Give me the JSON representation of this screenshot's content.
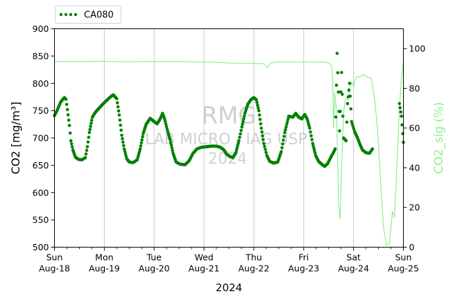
{
  "chart_data": {
    "type": "scatter",
    "xlabel": "2024",
    "ylabel_left": "CO2 [mg/m³]",
    "ylabel_right": "CO2_sig (%)",
    "ylim_left": [
      500,
      900
    ],
    "ylim_right": [
      0,
      110
    ],
    "xlim_days": [
      0,
      7
    ],
    "x_ticks": [
      {
        "day": "Sun",
        "date": "Aug-18"
      },
      {
        "day": "Mon",
        "date": "Aug-19"
      },
      {
        "day": "Tue",
        "date": "Aug-20"
      },
      {
        "day": "Wed",
        "date": "Aug-21"
      },
      {
        "day": "Thu",
        "date": "Aug-22"
      },
      {
        "day": "Fri",
        "date": "Aug-23"
      },
      {
        "day": "Sat",
        "date": "Aug-24"
      },
      {
        "day": "Sun",
        "date": "Aug-25"
      }
    ],
    "y_ticks_left": [
      500,
      550,
      600,
      650,
      700,
      750,
      800,
      850,
      900
    ],
    "y_ticks_right": [
      0,
      20,
      40,
      60,
      80,
      100
    ],
    "grid": "vertical at major x ticks",
    "legend": {
      "placement": "top-left outside",
      "label": "CA080"
    },
    "watermark": [
      "RMG",
      "LAB MICRO - IAG USP",
      "2024"
    ],
    "colors": {
      "co2": "#008000",
      "signal": "#90ee90",
      "grid": "#c8c8c8",
      "watermark": "#c8c8c8"
    },
    "series": [
      {
        "name": "CA080",
        "axis": "left",
        "style": "dots",
        "points": [
          [
            0.0,
            741
          ],
          [
            0.04,
            748
          ],
          [
            0.08,
            756
          ],
          [
            0.12,
            765
          ],
          [
            0.16,
            770
          ],
          [
            0.2,
            774
          ],
          [
            0.23,
            771
          ],
          [
            0.26,
            752
          ],
          [
            0.3,
            723
          ],
          [
            0.33,
            695
          ],
          [
            0.37,
            678
          ],
          [
            0.42,
            665
          ],
          [
            0.48,
            661
          ],
          [
            0.55,
            660
          ],
          [
            0.62,
            664
          ],
          [
            0.66,
            684
          ],
          [
            0.7,
            710
          ],
          [
            0.76,
            738
          ],
          [
            0.82,
            747
          ],
          [
            0.9,
            755
          ],
          [
            0.98,
            763
          ],
          [
            1.05,
            769
          ],
          [
            1.12,
            775
          ],
          [
            1.18,
            779
          ],
          [
            1.25,
            772
          ],
          [
            1.3,
            742
          ],
          [
            1.35,
            705
          ],
          [
            1.4,
            680
          ],
          [
            1.45,
            662
          ],
          [
            1.5,
            656
          ],
          [
            1.58,
            655
          ],
          [
            1.66,
            660
          ],
          [
            1.72,
            680
          ],
          [
            1.78,
            708
          ],
          [
            1.84,
            725
          ],
          [
            1.92,
            736
          ],
          [
            2.0,
            730
          ],
          [
            2.06,
            726
          ],
          [
            2.12,
            735
          ],
          [
            2.17,
            745
          ],
          [
            2.21,
            735
          ],
          [
            2.26,
            716
          ],
          [
            2.32,
            697
          ],
          [
            2.38,
            672
          ],
          [
            2.44,
            656
          ],
          [
            2.52,
            652
          ],
          [
            2.62,
            651
          ],
          [
            2.7,
            658
          ],
          [
            2.78,
            672
          ],
          [
            2.86,
            680
          ],
          [
            2.95,
            683
          ],
          [
            3.05,
            684
          ],
          [
            3.15,
            685
          ],
          [
            3.25,
            685
          ],
          [
            3.33,
            683
          ],
          [
            3.4,
            678
          ],
          [
            3.46,
            670
          ],
          [
            3.52,
            666
          ],
          [
            3.58,
            664
          ],
          [
            3.64,
            673
          ],
          [
            3.7,
            695
          ],
          [
            3.76,
            720
          ],
          [
            3.82,
            745
          ],
          [
            3.88,
            762
          ],
          [
            3.94,
            770
          ],
          [
            4.0,
            774
          ],
          [
            4.05,
            770
          ],
          [
            4.1,
            750
          ],
          [
            4.15,
            718
          ],
          [
            4.2,
            690
          ],
          [
            4.26,
            668
          ],
          [
            4.32,
            657
          ],
          [
            4.4,
            654
          ],
          [
            4.48,
            656
          ],
          [
            4.55,
            675
          ],
          [
            4.62,
            710
          ],
          [
            4.7,
            740
          ],
          [
            4.78,
            738
          ],
          [
            4.84,
            745
          ],
          [
            4.9,
            738
          ],
          [
            4.96,
            735
          ],
          [
            5.02,
            743
          ],
          [
            5.07,
            735
          ],
          [
            5.12,
            718
          ],
          [
            5.18,
            690
          ],
          [
            5.24,
            668
          ],
          [
            5.3,
            657
          ],
          [
            5.36,
            652
          ],
          [
            5.42,
            648
          ],
          [
            5.48,
            653
          ],
          [
            5.54,
            664
          ],
          [
            5.6,
            674
          ],
          [
            5.63,
            680
          ],
          [
            5.67,
            855
          ],
          [
            5.72,
            713
          ],
          [
            5.76,
            820
          ],
          [
            5.8,
            700
          ],
          [
            5.85,
            695
          ],
          [
            5.88,
            763
          ],
          [
            5.92,
            800
          ],
          [
            5.96,
            730
          ],
          [
            6.02,
            712
          ],
          [
            6.08,
            700
          ],
          [
            6.13,
            688
          ],
          [
            6.18,
            678
          ],
          [
            6.25,
            673
          ],
          [
            6.32,
            672
          ],
          [
            6.38,
            680
          ],
          [
            6.92,
            763
          ],
          [
            6.96,
            740
          ],
          [
            7.0,
            692
          ]
        ]
      },
      {
        "name": "CO2_sig",
        "axis": "right",
        "style": "line",
        "points": [
          [
            0.0,
            93.5
          ],
          [
            0.5,
            93.5
          ],
          [
            1.0,
            93.6
          ],
          [
            1.5,
            93.4
          ],
          [
            2.0,
            93.5
          ],
          [
            2.5,
            93.5
          ],
          [
            3.0,
            93.3
          ],
          [
            3.3,
            93.1
          ],
          [
            3.6,
            92.6
          ],
          [
            3.9,
            92.6
          ],
          [
            4.2,
            92.4
          ],
          [
            4.28,
            90.5
          ],
          [
            4.32,
            92.6
          ],
          [
            4.5,
            93.4
          ],
          [
            4.7,
            93.3
          ],
          [
            5.0,
            93.3
          ],
          [
            5.4,
            93.2
          ],
          [
            5.5,
            92.8
          ],
          [
            5.56,
            91.5
          ],
          [
            5.58,
            84
          ],
          [
            5.6,
            60
          ],
          [
            5.62,
            78
          ],
          [
            5.64,
            74
          ],
          [
            5.66,
            65
          ],
          [
            5.68,
            45
          ],
          [
            5.7,
            22
          ],
          [
            5.73,
            14
          ],
          [
            5.76,
            40
          ],
          [
            5.8,
            68
          ],
          [
            5.84,
            75
          ],
          [
            5.88,
            74
          ],
          [
            5.92,
            79
          ],
          [
            5.96,
            83
          ],
          [
            6.0,
            81
          ],
          [
            6.04,
            85
          ],
          [
            6.08,
            86
          ],
          [
            6.12,
            85.5
          ],
          [
            6.16,
            86.5
          ],
          [
            6.2,
            87
          ],
          [
            6.25,
            86
          ],
          [
            6.3,
            85.5
          ],
          [
            6.36,
            85
          ],
          [
            6.42,
            75
          ],
          [
            6.48,
            60
          ],
          [
            6.54,
            35
          ],
          [
            6.6,
            10
          ],
          [
            6.66,
            1
          ],
          [
            6.72,
            2
          ],
          [
            6.76,
            12
          ],
          [
            6.78,
            18
          ],
          [
            6.82,
            15
          ],
          [
            6.86,
            35
          ],
          [
            6.92,
            70
          ],
          [
            6.96,
            85
          ],
          [
            7.0,
            94
          ]
        ]
      }
    ]
  }
}
